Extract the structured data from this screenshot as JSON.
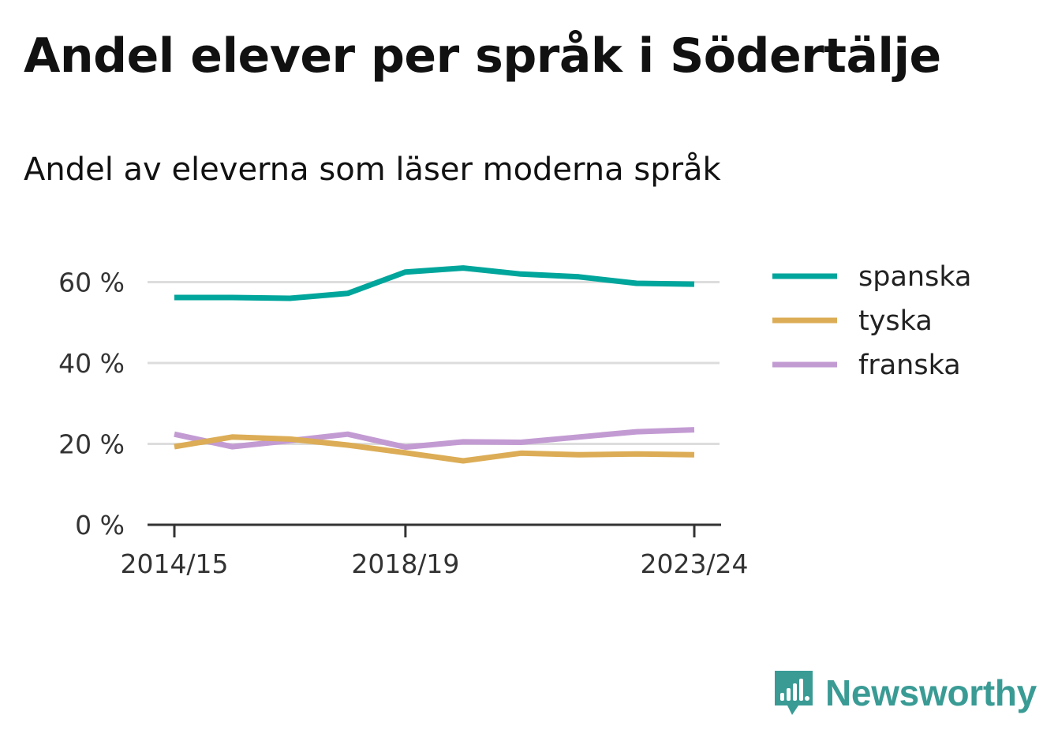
{
  "title": "Andel elever per språk i Södertälje",
  "subtitle": "Andel av eleverna som läser moderna språk",
  "brand": {
    "name": "Newsworthy",
    "color": "#3a9b95",
    "icon": "bar-chart-speech-bubble-icon"
  },
  "chart_data": {
    "type": "line",
    "x": [
      "2014/15",
      "2015/16",
      "2016/17",
      "2017/18",
      "2018/19",
      "2019/20",
      "2020/21",
      "2021/22",
      "2022/23",
      "2023/24"
    ],
    "x_tick_labels": [
      "2014/15",
      "2018/19",
      "2023/24"
    ],
    "y_ticks": [
      0,
      20,
      40,
      60
    ],
    "y_tick_labels": [
      "0 %",
      "20 %",
      "40 %",
      "60 %"
    ],
    "ylim": [
      0,
      70
    ],
    "grid": true,
    "legend_position": "right",
    "series": [
      {
        "name": "spanska",
        "color": "#00a59b",
        "values": [
          56.2,
          56.2,
          56.0,
          57.2,
          62.5,
          63.5,
          62.0,
          61.3,
          59.7,
          59.5
        ]
      },
      {
        "name": "tyska",
        "color": "#dcad56",
        "values": [
          19.3,
          21.7,
          21.2,
          19.7,
          17.8,
          15.8,
          17.7,
          17.3,
          17.5,
          17.3
        ]
      },
      {
        "name": "franska",
        "color": "#c39bd3",
        "values": [
          22.4,
          19.3,
          20.8,
          22.4,
          19.2,
          20.5,
          20.4,
          21.7,
          23.0,
          23.5
        ]
      }
    ]
  }
}
